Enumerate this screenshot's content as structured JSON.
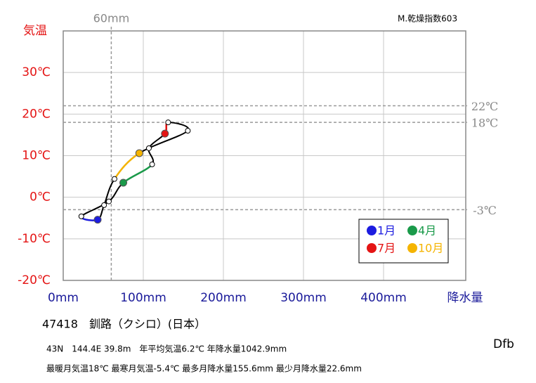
{
  "chart_data": {
    "type": "climograph",
    "y_label": "気温",
    "x_label": "降水量",
    "note": "M.乾燥指数603",
    "station": "47418　釧路（クシロ）(日本）",
    "info_lines": [
      "43N　144.4E 39.8m　年平均気温6.2℃ 年降水量1042.9mm",
      "最暖月気温18℃ 最寒月気温-5.4℃ 最多月降水量155.6mm 最少月降水量22.6mm"
    ],
    "climate_class": "Dfb",
    "x": [
      43,
      22.6,
      57,
      75,
      111,
      107,
      127,
      131,
      155.6,
      95,
      64,
      51
    ],
    "values": [
      -5.4,
      -4.6,
      -1.0,
      3.5,
      7.9,
      11.8,
      15.3,
      18,
      16,
      10.6,
      4.4,
      -1.9
    ],
    "point_colors": [
      "#1c1ce0",
      null,
      null,
      "#1a9a4a",
      null,
      null,
      "#e41414",
      null,
      null,
      "#f5b400",
      null,
      null
    ],
    "legend": [
      {
        "label": "1月",
        "color": "#1c1ce0"
      },
      {
        "label": "4月",
        "color": "#1a9a4a"
      },
      {
        "label": "7月",
        "color": "#e41414"
      },
      {
        "label": "10月",
        "color": "#f5b400"
      }
    ],
    "ref_lines": [
      {
        "axis": "x",
        "value": 60,
        "label": "60mm"
      },
      {
        "axis": "y",
        "value": 22,
        "label": "22℃"
      },
      {
        "axis": "y",
        "value": 18,
        "label": "18℃"
      },
      {
        "axis": "y",
        "value": -3,
        "label": "-3℃"
      }
    ],
    "xlim": [
      0,
      500
    ],
    "ylim": [
      -20,
      40
    ],
    "xticks": [
      {
        "value": 0,
        "label": "0mm"
      },
      {
        "value": 100,
        "label": "100mm"
      },
      {
        "value": 200,
        "label": "200mm"
      },
      {
        "value": 300,
        "label": "300mm"
      },
      {
        "value": 400,
        "label": "400mm"
      }
    ],
    "yticks": [
      {
        "value": -20,
        "label": "-20℃"
      },
      {
        "value": -10,
        "label": "-10℃"
      },
      {
        "value": 0,
        "label": "0℃"
      },
      {
        "value": 10,
        "label": "10℃"
      },
      {
        "value": 20,
        "label": "20℃"
      },
      {
        "value": 30,
        "label": "30℃"
      }
    ],
    "grid": true
  }
}
